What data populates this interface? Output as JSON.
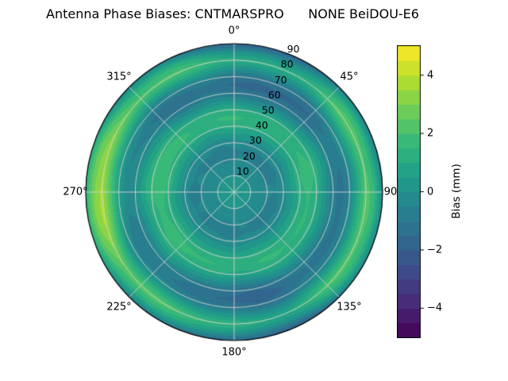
{
  "chart_data": {
    "type": "heatmap",
    "projection": "polar",
    "title": "Antenna Phase Biases: CNTMARSPRO      NONE BeiDOU-E6",
    "station": "CNTMARSPRO",
    "antenna": "NONE",
    "signal": "BeiDOU-E6",
    "units": "mm",
    "angular_ticks": [
      {
        "deg": 0,
        "label": "0°"
      },
      {
        "deg": 45,
        "label": "45°"
      },
      {
        "deg": 90,
        "label": "90"
      },
      {
        "deg": 135,
        "label": "135°"
      },
      {
        "deg": 180,
        "label": "180°"
      },
      {
        "deg": 225,
        "label": "225°"
      },
      {
        "deg": 270,
        "label": "270°"
      },
      {
        "deg": 315,
        "label": "315°"
      }
    ],
    "radial_ticks": [
      {
        "r": 10,
        "label": "10"
      },
      {
        "r": 20,
        "label": "20"
      },
      {
        "r": 30,
        "label": "30"
      },
      {
        "r": 40,
        "label": "40"
      },
      {
        "r": 50,
        "label": "50"
      },
      {
        "r": 60,
        "label": "60"
      },
      {
        "r": 70,
        "label": "70"
      },
      {
        "r": 80,
        "label": "80"
      },
      {
        "r": 90,
        "label": "90"
      }
    ],
    "radial_range": [
      0,
      90
    ],
    "radial_label_angle_deg": 22.5,
    "value_range": [
      -5,
      5
    ],
    "contour_level_step": 0.5,
    "colormap": "viridis",
    "colormap_stops": [
      "#440154",
      "#482878",
      "#3e4989",
      "#31688e",
      "#26828e",
      "#1f9e89",
      "#35b779",
      "#6dcd59",
      "#b4de2c",
      "#fde725"
    ],
    "grid_color": "#d4d4d4",
    "outline_color": "#000000",
    "colorbar": {
      "label": "Bias (mm)",
      "ticks": [
        {
          "value": 4,
          "label": "4"
        },
        {
          "value": 2,
          "label": "2"
        },
        {
          "value": 0,
          "label": "0"
        },
        {
          "value": -2,
          "label": "−2"
        },
        {
          "value": -4,
          "label": "−4"
        }
      ]
    },
    "radial_profile_bias_mm": [
      {
        "r": 0,
        "bias": 0.6
      },
      {
        "r": 5,
        "bias": 0.4
      },
      {
        "r": 10,
        "bias": 0.0
      },
      {
        "r": 15,
        "bias": -0.3
      },
      {
        "r": 20,
        "bias": -0.5
      },
      {
        "r": 25,
        "bias": -0.6
      },
      {
        "r": 30,
        "bias": -0.3
      },
      {
        "r": 35,
        "bias": 0.4
      },
      {
        "r": 40,
        "bias": 1.2
      },
      {
        "r": 45,
        "bias": 1.6
      },
      {
        "r": 50,
        "bias": 1.2
      },
      {
        "r": 55,
        "bias": 0.2
      },
      {
        "r": 60,
        "bias": -0.8
      },
      {
        "r": 65,
        "bias": -1.2
      },
      {
        "r": 70,
        "bias": -0.5
      },
      {
        "r": 75,
        "bias": 0.9
      },
      {
        "r": 80,
        "bias": 2.2
      },
      {
        "r": 85,
        "bias": 1.2
      },
      {
        "r": 90,
        "bias": -0.6
      }
    ],
    "azimuthal_harmonics": [
      {
        "k": 2,
        "amplitude": -1.2,
        "phase_deg": 0,
        "radial_power": 3,
        "swirl_deg_per_r": 0
      },
      {
        "k": 1,
        "amplitude": 0.7,
        "phase_deg": 270,
        "radial_power": 3,
        "swirl_deg_per_r": 0
      },
      {
        "k": 5,
        "amplitude": 0.3,
        "phase_deg": 30,
        "radial_power": 1.5,
        "swirl_deg_per_r": 3
      },
      {
        "k": 9,
        "amplitude": 0.15,
        "phase_deg": 100,
        "radial_power": 1,
        "swirl_deg_per_r": 5
      }
    ]
  }
}
